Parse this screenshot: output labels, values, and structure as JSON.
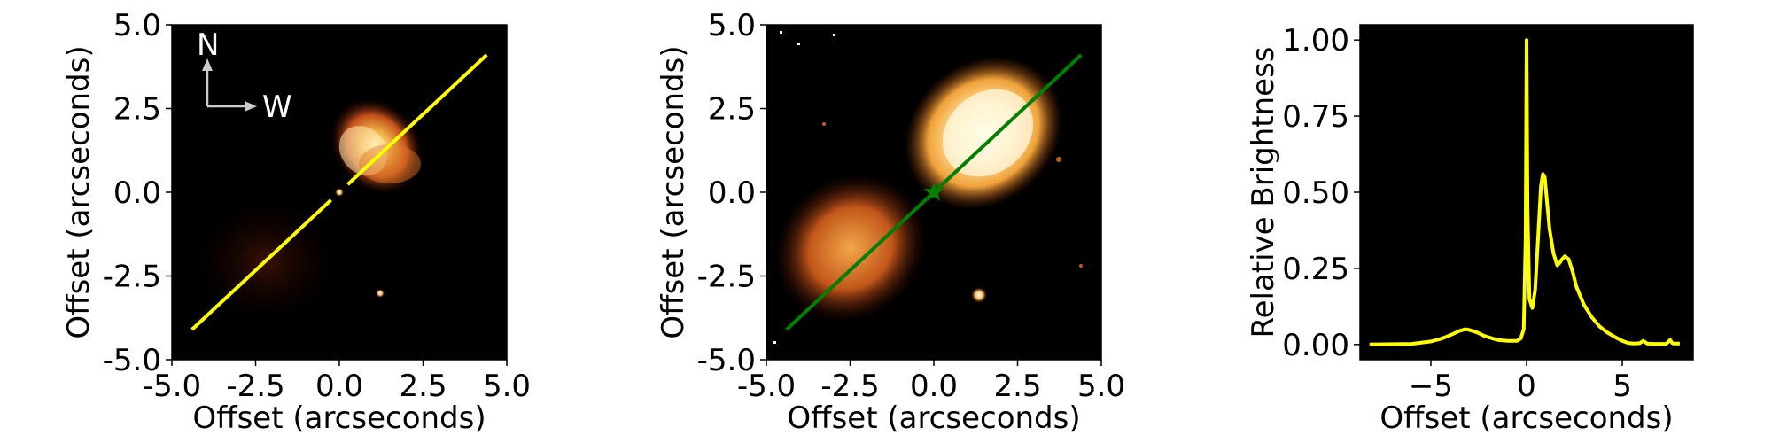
{
  "chart_data": [
    {
      "type": "image",
      "panel": "left",
      "xlabel": "Offset (arcseconds)",
      "ylabel": "Offset (arcseconds)",
      "xlim": [
        -5,
        5
      ],
      "ylim": [
        -5,
        5
      ],
      "xticks": [
        "-5.0",
        "-2.5",
        "0.0",
        "2.5",
        "5.0"
      ],
      "yticks": [
        "-5.0",
        "-2.5",
        "0.0",
        "2.5",
        "5.0"
      ],
      "compass": {
        "north": "N",
        "west": "W",
        "color": "#cccccc"
      },
      "cut_line": {
        "color": "#ffff00",
        "x": [
          -4.4,
          4.4
        ],
        "y": [
          -4.1,
          4.1
        ],
        "gap_x": [
          -0.25,
          0.25
        ]
      },
      "background": "#000000"
    },
    {
      "type": "image",
      "panel": "middle",
      "xlabel": "Offset (arcseconds)",
      "ylabel": "Offset (arcseconds)",
      "xlim": [
        -5,
        5
      ],
      "ylim": [
        -5,
        5
      ],
      "xticks": [
        "-5.0",
        "-2.5",
        "0.0",
        "2.5",
        "5.0"
      ],
      "yticks": [
        "-5.0",
        "-2.5",
        "0.0",
        "2.5",
        "5.0"
      ],
      "cut_line": {
        "color": "#007f00",
        "x": [
          -4.4,
          4.4
        ],
        "y": [
          -4.1,
          4.1
        ]
      },
      "star_marker": {
        "x": 0.0,
        "y": 0.0,
        "color": "#007f00"
      },
      "background": "#000000"
    },
    {
      "type": "line",
      "panel": "right",
      "xlabel": "Offset (arcseconds)",
      "ylabel": "Relative Brightness",
      "xlim": [
        -8.7,
        8.7
      ],
      "ylim": [
        -0.05,
        1.05
      ],
      "xticks": [
        -5,
        0,
        5
      ],
      "xtick_labels": [
        "−5",
        "0",
        "5"
      ],
      "yticks": [
        0.0,
        0.25,
        0.5,
        0.75,
        1.0
      ],
      "ytick_labels": [
        "0.00",
        "0.25",
        "0.50",
        "0.75",
        "1.00"
      ],
      "background": "#000000",
      "series": [
        {
          "color": "#ffff00",
          "x": [
            -8.2,
            -6,
            -5,
            -4.5,
            -4,
            -3.5,
            -3.2,
            -3.0,
            -2.6,
            -2.2,
            -1.8,
            -1.5,
            -1,
            -0.5,
            -0.3,
            -0.15,
            -0.05,
            0,
            0.05,
            0.15,
            0.3,
            0.45,
            0.6,
            0.75,
            0.85,
            0.95,
            1.05,
            1.2,
            1.4,
            1.6,
            1.75,
            1.85,
            2.0,
            2.2,
            2.4,
            2.6,
            2.8,
            3.0,
            3.4,
            3.8,
            4.2,
            4.6,
            5.0,
            5.3,
            5.6,
            5.9,
            6.1,
            6.3,
            6.6,
            7.0,
            7.3,
            7.5,
            7.6,
            7.7,
            8.0
          ],
          "y": [
            0.0,
            0.002,
            0.01,
            0.018,
            0.03,
            0.045,
            0.05,
            0.048,
            0.04,
            0.028,
            0.02,
            0.015,
            0.012,
            0.012,
            0.02,
            0.05,
            0.35,
            1.0,
            0.45,
            0.15,
            0.12,
            0.18,
            0.35,
            0.52,
            0.56,
            0.55,
            0.48,
            0.38,
            0.3,
            0.26,
            0.27,
            0.28,
            0.29,
            0.28,
            0.24,
            0.19,
            0.16,
            0.13,
            0.09,
            0.06,
            0.04,
            0.025,
            0.012,
            0.005,
            0.003,
            0.004,
            0.012,
            0.003,
            0.002,
            0.002,
            0.002,
            0.015,
            0.005,
            0.003,
            0.003
          ]
        }
      ]
    }
  ]
}
